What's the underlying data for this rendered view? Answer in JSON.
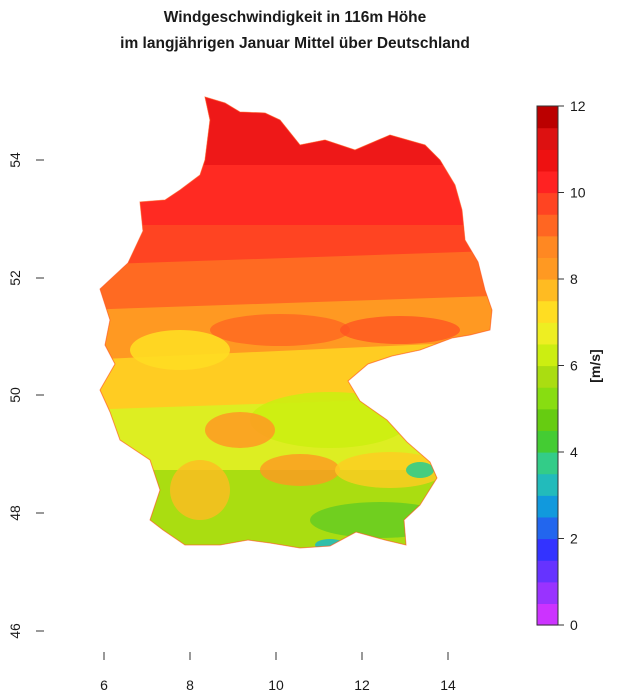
{
  "title_line1": "Windgeschwindigkeit in 116m Höhe",
  "title_line2": "im langjährigen Januar Mittel über Deutschland",
  "map": {
    "region": "Germany",
    "lon_range": [
      4.9,
      15.2
    ],
    "lat_range": [
      45.9,
      55.5
    ],
    "x_ticks": [
      6,
      8,
      10,
      12,
      14
    ],
    "y_ticks": [
      46,
      48,
      50,
      52,
      54
    ],
    "x_tick_labels": [
      "6",
      "8",
      "10",
      "12",
      "14"
    ],
    "y_tick_labels": [
      "46",
      "48",
      "50",
      "52",
      "54"
    ],
    "pattern": "highest wind speeds along the North Sea and Baltic coast (10-11 m/s), decreasing southward to 5-6 m/s in the south and around 4 m/s along the Alps"
  },
  "legend": {
    "unit": "[m/s]",
    "min": 0,
    "max": 12,
    "tick_values": [
      0,
      2,
      4,
      6,
      8,
      10,
      12
    ],
    "tick_labels": [
      "0",
      "2",
      "4",
      "6",
      "8",
      "10",
      "12"
    ],
    "colors": [
      "#cc33ff",
      "#9933ff",
      "#6633ff",
      "#3333ff",
      "#2266ee",
      "#1199dd",
      "#22bbbb",
      "#33cc88",
      "#44cc33",
      "#66cc11",
      "#88dd11",
      "#aadd11",
      "#ccee11",
      "#eeee22",
      "#ffdd22",
      "#ffbb22",
      "#ff9922",
      "#ff8822",
      "#ff6622",
      "#ff4422",
      "#ff2222",
      "#ee1111",
      "#dd1111",
      "#bb0000"
    ]
  }
}
